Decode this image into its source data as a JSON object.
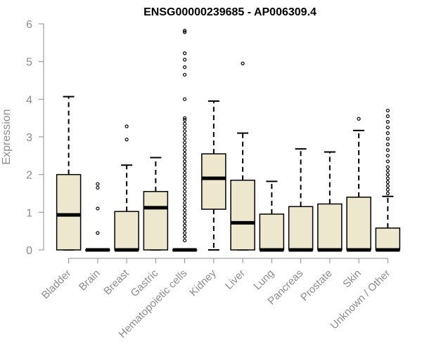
{
  "chart_data": {
    "type": "boxplot",
    "title": "ENSG00000239685 - AP006309.4",
    "ylabel": "Expression",
    "xlabel": "",
    "ylim": [
      0,
      6
    ],
    "yticks": [
      0,
      1,
      2,
      3,
      4,
      5,
      6
    ],
    "box_color": "#ede7cd",
    "grid": false,
    "categories": [
      "Bladder",
      "Brain",
      "Breast",
      "Gastric",
      "Hematopoietic cells",
      "Kidney",
      "Liver",
      "Lung",
      "Pancreas",
      "Prostate",
      "Skin",
      "Unknown / Other"
    ],
    "boxes": [
      {
        "category": "Bladder",
        "min": 0,
        "q1": 0,
        "median": 0.93,
        "q3": 2.0,
        "max": 4.07,
        "outliers": []
      },
      {
        "category": "Brain",
        "min": 0,
        "q1": 0,
        "median": 0,
        "q3": 0,
        "max": 0,
        "outliers": [
          0.45,
          1.1,
          1.65,
          1.75
        ]
      },
      {
        "category": "Breast",
        "min": 0,
        "q1": 0,
        "median": 0,
        "q3": 1.02,
        "max": 2.25,
        "outliers": [
          2.93,
          3.28
        ]
      },
      {
        "category": "Gastric",
        "min": 0,
        "q1": 0,
        "median": 1.12,
        "q3": 1.55,
        "max": 2.45,
        "outliers": []
      },
      {
        "category": "Hematopoietic cells",
        "min": 0,
        "q1": 0,
        "median": 0,
        "q3": 0,
        "max": 0,
        "outliers": [
          0.25,
          0.35,
          0.45,
          0.55,
          0.65,
          0.75,
          0.85,
          0.95,
          1.05,
          1.15,
          1.25,
          1.35,
          1.45,
          1.55,
          1.65,
          1.75,
          1.85,
          1.95,
          2.05,
          2.15,
          2.25,
          2.35,
          2.45,
          2.55,
          2.65,
          2.75,
          2.85,
          2.95,
          3.05,
          3.15,
          3.25,
          3.35,
          3.45,
          3.5,
          4.0,
          4.65,
          4.85,
          5.05,
          5.22,
          5.78,
          5.82
        ]
      },
      {
        "category": "Kidney",
        "min": 0,
        "q1": 1.08,
        "median": 1.9,
        "q3": 2.55,
        "max": 3.95,
        "outliers": []
      },
      {
        "category": "Liver",
        "min": 0,
        "q1": 0,
        "median": 0.72,
        "q3": 1.85,
        "max": 3.1,
        "outliers": [
          4.95
        ]
      },
      {
        "category": "Lung",
        "min": 0,
        "q1": 0,
        "median": 0,
        "q3": 0.95,
        "max": 1.82,
        "outliers": []
      },
      {
        "category": "Pancreas",
        "min": 0,
        "q1": 0,
        "median": 0,
        "q3": 1.15,
        "max": 2.68,
        "outliers": []
      },
      {
        "category": "Prostate",
        "min": 0,
        "q1": 0,
        "median": 0,
        "q3": 1.22,
        "max": 2.6,
        "outliers": []
      },
      {
        "category": "Skin",
        "min": 0,
        "q1": 0,
        "median": 0,
        "q3": 1.4,
        "max": 3.17,
        "outliers": [
          3.48
        ]
      },
      {
        "category": "Unknown / Other",
        "min": 0,
        "q1": 0,
        "median": 0,
        "q3": 0.58,
        "max": 1.42,
        "outliers": [
          1.5,
          1.6,
          1.7,
          1.8,
          1.9,
          2.0,
          2.1,
          2.2,
          2.35,
          2.5,
          2.65,
          2.8,
          2.95,
          3.1,
          3.25,
          3.4,
          3.55,
          3.7
        ]
      }
    ]
  }
}
